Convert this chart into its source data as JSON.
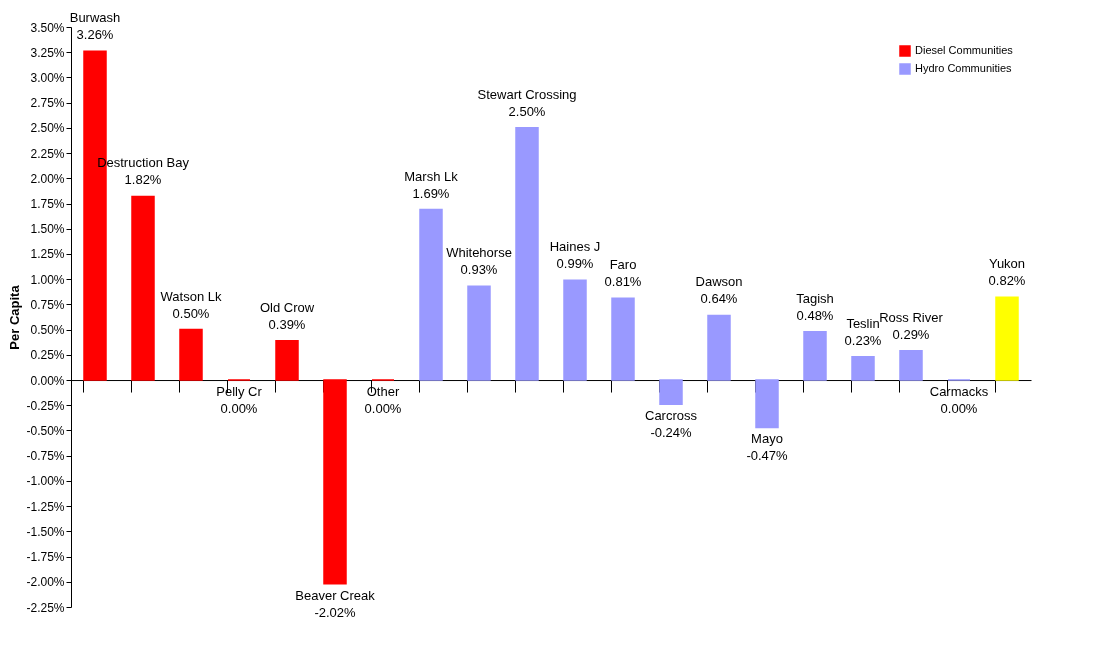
{
  "chart_data": {
    "type": "bar",
    "ylabel": "Per Capita",
    "categories": [
      "Burwash",
      "Destruction Bay",
      "Watson Lk",
      "Pelly Cr",
      "Old Crow",
      "Beaver Creak",
      "Other",
      "Marsh Lk",
      "Whitehorse",
      "Stewart Crossing",
      "Haines J",
      "Faro",
      "Carcross",
      "Dawson",
      "Mayo",
      "Tagish",
      "Teslin",
      "Ross River",
      "Carmacks",
      "Yukon"
    ],
    "series": [
      {
        "name": "Diesel Communities",
        "color": "#ff0000",
        "values": [
          3.26,
          1.82,
          0.5,
          0.0,
          0.39,
          -2.02,
          0.0,
          null,
          null,
          null,
          null,
          null,
          null,
          null,
          null,
          null,
          null,
          null,
          null,
          null
        ],
        "value_labels": [
          "3.26%",
          "1.82%",
          "0.50%",
          "0.00%",
          "0.39%",
          "-2.02%",
          "0.00%",
          null,
          null,
          null,
          null,
          null,
          null,
          null,
          null,
          null,
          null,
          null,
          null,
          null
        ]
      },
      {
        "name": "Hydro Communities",
        "color": "#9999ff",
        "values": [
          null,
          null,
          null,
          null,
          null,
          null,
          null,
          1.69,
          0.93,
          2.5,
          0.99,
          0.81,
          -0.24,
          0.64,
          -0.47,
          0.48,
          0.23,
          0.29,
          0.0,
          null
        ],
        "value_labels": [
          null,
          null,
          null,
          null,
          null,
          null,
          null,
          "1.69%",
          "0.93%",
          "2.50%",
          "0.99%",
          "0.81%",
          "-0.24%",
          "0.64%",
          "-0.47%",
          "0.48%",
          "0.23%",
          "0.29%",
          "0.00%",
          null
        ]
      },
      {
        "color": "#ffff00",
        "values": [
          null,
          null,
          null,
          null,
          null,
          null,
          null,
          null,
          null,
          null,
          null,
          null,
          null,
          null,
          null,
          null,
          null,
          null,
          null,
          0.82
        ],
        "value_labels": [
          null,
          null,
          null,
          null,
          null,
          null,
          null,
          null,
          null,
          null,
          null,
          null,
          null,
          null,
          null,
          null,
          null,
          null,
          null,
          "0.82%"
        ]
      }
    ],
    "ylim": [
      -2.25,
      3.5
    ],
    "yticks": [
      {
        "value": 3.5,
        "label": "3.50%"
      },
      {
        "value": 3.25,
        "label": "3.25%"
      },
      {
        "value": 3.0,
        "label": "3.00%"
      },
      {
        "value": 2.75,
        "label": "2.75%"
      },
      {
        "value": 2.5,
        "label": "2.50%"
      },
      {
        "value": 2.25,
        "label": "2.25%"
      },
      {
        "value": 2.0,
        "label": "2.00%"
      },
      {
        "value": 1.75,
        "label": "1.75%"
      },
      {
        "value": 1.5,
        "label": "1.50%"
      },
      {
        "value": 1.25,
        "label": "1.25%"
      },
      {
        "value": 1.0,
        "label": "1.00%"
      },
      {
        "value": 0.75,
        "label": "0.75%"
      },
      {
        "value": 0.5,
        "label": "0.50%"
      },
      {
        "value": 0.25,
        "label": "0.25%"
      },
      {
        "value": 0,
        "label": "0.00%"
      },
      {
        "value": -0.25,
        "label": "-0.25%"
      },
      {
        "value": -0.5,
        "label": "-0.50%"
      },
      {
        "value": -0.75,
        "label": "-0.75%"
      },
      {
        "value": -1.0,
        "label": "-1.00%"
      },
      {
        "value": -1.25,
        "label": "-1.25%"
      },
      {
        "value": -1.5,
        "label": "-1.50%"
      },
      {
        "value": -1.75,
        "label": "-1.75%"
      },
      {
        "value": -2.0,
        "label": "-2.00%"
      },
      {
        "value": -2.25,
        "label": "-2.25%"
      }
    ],
    "grid": false,
    "legend": "top right"
  }
}
